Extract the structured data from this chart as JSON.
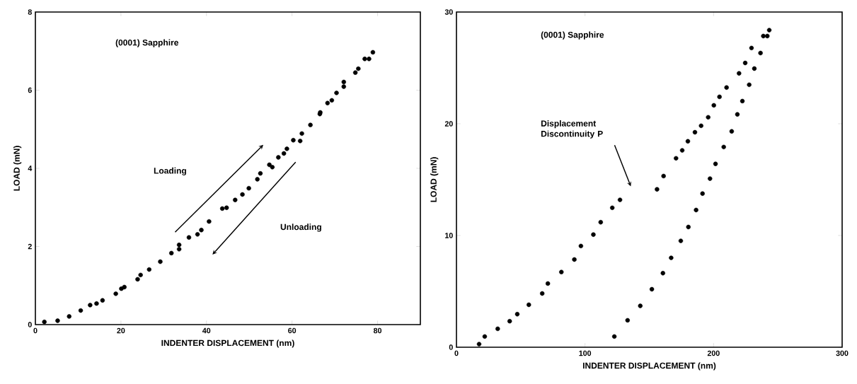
{
  "chart_data": [
    {
      "type": "scatter",
      "xlabel": "INDENTER DISPLACEMENT (nm)",
      "ylabel": "LOAD (mN)",
      "xlim": [
        0,
        90
      ],
      "ylim": [
        0,
        8
      ],
      "xticks": [
        0,
        20,
        40,
        60,
        80
      ],
      "yticks": [
        0,
        2,
        4,
        6,
        8
      ],
      "marker": "circle",
      "annotations": [
        "(0001) Sapphire",
        "Loading",
        "Unloading"
      ],
      "series": [
        {
          "color": "#000000",
          "x": [
            2.1,
            5.2,
            7.9,
            10.6,
            12.8,
            14.3,
            15.7,
            18.8,
            20.1,
            20.8,
            23.9,
            24.6,
            26.6,
            29.2,
            31.8,
            33.6,
            33.6,
            35.9,
            37.9,
            38.8,
            40.6,
            43.7,
            44.7,
            46.7,
            48.4,
            49.9,
            51.9,
            52.6,
            54.7,
            55.4,
            56.8,
            58.1,
            58.8,
            60.3,
            61.9,
            62.3,
            64.3,
            66.5,
            66.6,
            68.3,
            69.3,
            70.4,
            72.1,
            72.1,
            74.8,
            75.5,
            77.0,
            78.0,
            78.9
          ],
          "values": [
            0.07,
            0.1,
            0.21,
            0.36,
            0.5,
            0.54,
            0.62,
            0.79,
            0.92,
            0.96,
            1.16,
            1.27,
            1.41,
            1.61,
            1.83,
            2.04,
            1.93,
            2.23,
            2.31,
            2.42,
            2.64,
            2.97,
            2.99,
            3.19,
            3.33,
            3.49,
            3.72,
            3.87,
            4.09,
            4.03,
            4.28,
            4.38,
            4.5,
            4.72,
            4.7,
            4.89,
            5.11,
            5.39,
            5.43,
            5.67,
            5.74,
            5.93,
            6.09,
            6.21,
            6.45,
            6.55,
            6.8,
            6.8,
            6.97
          ]
        }
      ]
    },
    {
      "type": "scatter",
      "xlabel": "INDENTER DISPLACEMENT (nm)",
      "ylabel": "LOAD (mN)",
      "xlim": [
        0,
        300
      ],
      "ylim": [
        0,
        30
      ],
      "xticks": [
        0,
        100,
        200,
        300
      ],
      "yticks": [
        0,
        10,
        20,
        30
      ],
      "marker": "circle",
      "annotations": [
        "(0001) Sapphire",
        "Displacement Discontinuity P"
      ],
      "series": [
        {
          "color": "#000000",
          "x": [
            17.6,
            22.0,
            32.1,
            41.4,
            47.3,
            56.3,
            66.7,
            71.1,
            81.6,
            91.7,
            96.8,
            106.5,
            112.2,
            121.2,
            127.2,
            156.0,
            161.1,
            170.8,
            175.6,
            180.0,
            185.5,
            190.3,
            195.8,
            200.2,
            204.6,
            210.1,
            219.8,
            224.6,
            229.5,
            238.7,
            243.3
          ],
          "values": [
            0.28,
            0.96,
            1.65,
            2.33,
            2.96,
            3.8,
            4.81,
            5.7,
            6.73,
            7.85,
            9.06,
            10.08,
            11.19,
            12.48,
            13.19,
            14.13,
            15.32,
            16.91,
            17.62,
            18.43,
            19.24,
            19.82,
            20.58,
            21.65,
            22.41,
            23.24,
            24.51,
            25.44,
            26.78,
            27.85,
            28.38
          ]
        },
        {
          "color": "#000000",
          "x": [
            122.8,
            133.1,
            143.0,
            152.0,
            160.6,
            167.0,
            174.5,
            180.4,
            186.4,
            191.4,
            197.2,
            201.5,
            207.9,
            214.1,
            218.5,
            222.4,
            227.7,
            231.7,
            236.5,
            241.8
          ],
          "values": [
            0.96,
            2.41,
            3.7,
            5.19,
            6.63,
            8.0,
            9.52,
            10.76,
            12.28,
            13.75,
            15.09,
            16.41,
            17.92,
            19.32,
            20.84,
            22.03,
            23.49,
            24.94,
            26.33,
            27.85
          ]
        }
      ]
    }
  ]
}
